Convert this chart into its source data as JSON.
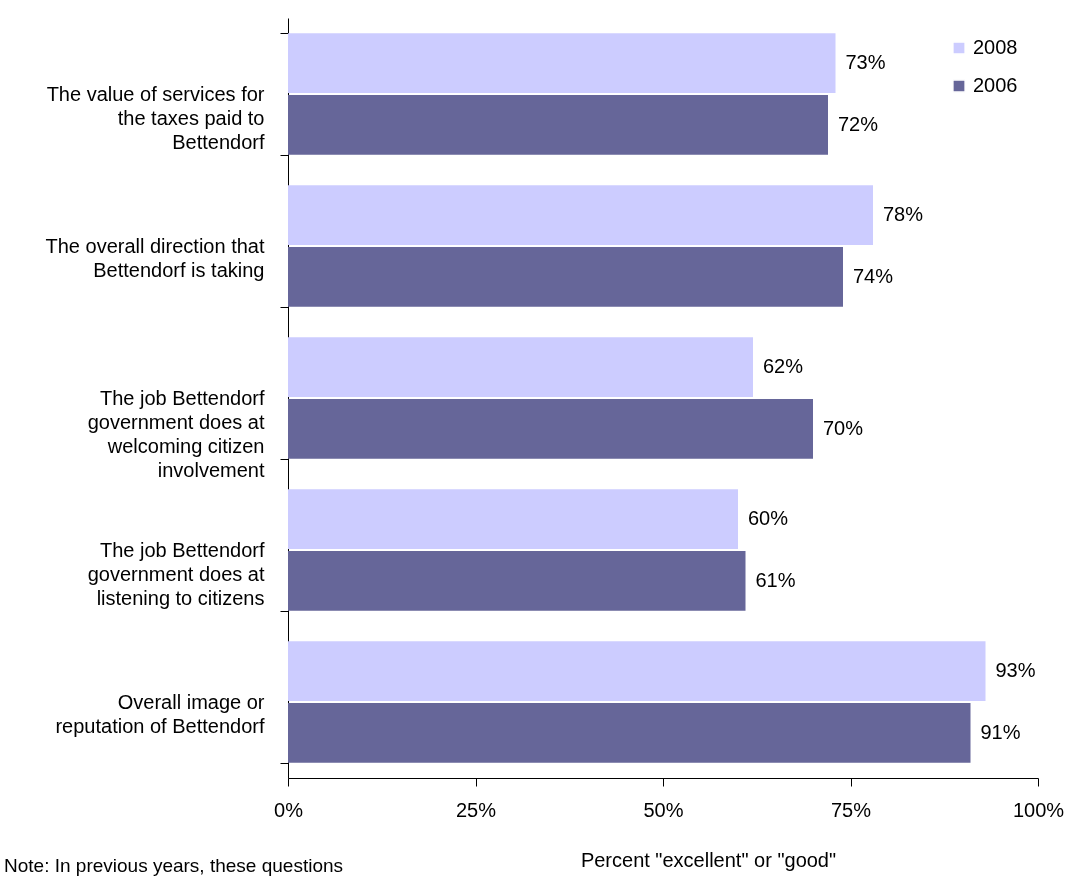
{
  "chart_data": {
    "type": "bar",
    "orientation": "horizontal",
    "xlabel": "Percent \"excellent\" or \"good\"",
    "categories": [
      "The value of services for the taxes paid to Bettendorf",
      "The overall direction that Bettendorf is taking",
      "The job Bettendorf government does at welcoming citizen involvement",
      "The job Bettendorf government does at listening to citizens",
      "Overall image or reputation of Bettendorf"
    ],
    "series": [
      {
        "name": "2008",
        "color": "#ccccff",
        "values": [
          73,
          78,
          62,
          60,
          93
        ],
        "value_labels": [
          "73%",
          "78%",
          "62%",
          "60%",
          "93%"
        ]
      },
      {
        "name": "2006",
        "color": "#666699",
        "values": [
          72,
          74,
          70,
          61,
          91
        ],
        "value_labels": [
          "72%",
          "74%",
          "70%",
          "61%",
          "91%"
        ]
      }
    ],
    "xlim": [
      0,
      100
    ],
    "xticks": [
      {
        "value": 0,
        "label": "0%"
      },
      {
        "value": 25,
        "label": "25%"
      },
      {
        "value": 50,
        "label": "50%"
      },
      {
        "value": 75,
        "label": "75%"
      },
      {
        "value": 100,
        "label": "100%"
      }
    ],
    "grid": false,
    "legend": "top right",
    "annotations": [
      "Note: In previous years, these questions"
    ]
  }
}
